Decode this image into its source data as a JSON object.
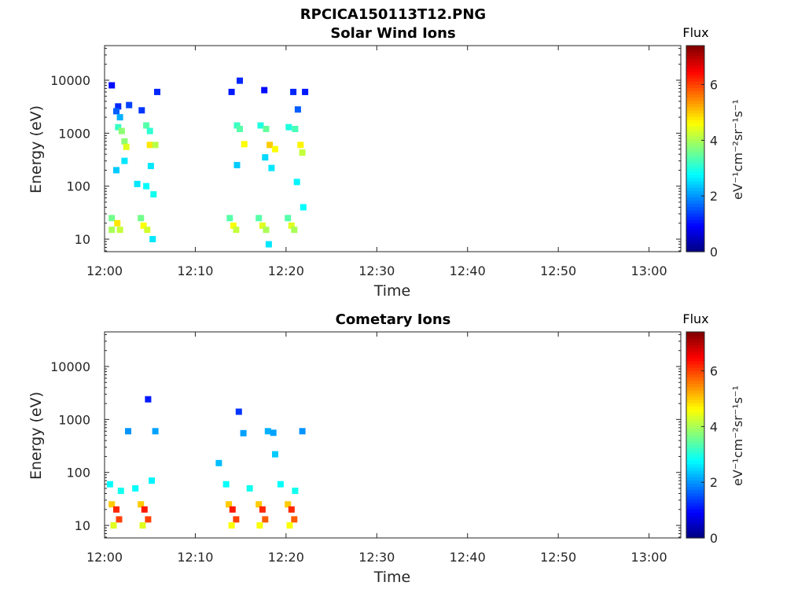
{
  "figure_title": "RPCICA150113T12.PNG",
  "chart_data": [
    {
      "type": "heatmap",
      "title": "Solar Wind Ions",
      "xlabel": "Time",
      "ylabel": "Energy (eV)",
      "x_ticks": [
        "12:00",
        "12:10",
        "12:20",
        "12:30",
        "12:40",
        "12:50",
        "13:00"
      ],
      "x_range_minutes": [
        0,
        63.5
      ],
      "y_scale": "log",
      "y_range": [
        5.8,
        45000
      ],
      "y_ticks": [
        10,
        100,
        1000,
        10000
      ],
      "y_tick_labels": [
        "10",
        "100",
        "1000",
        "10000"
      ],
      "colorbar": {
        "title": "Flux",
        "unit_label": "eV⁻¹cm⁻²sr⁻¹s⁻¹",
        "range": [
          0,
          7.4
        ],
        "ticks": [
          0,
          2,
          4,
          6
        ],
        "colormap": "jet"
      },
      "cells": [
        {
          "t": 0.8,
          "e": 8000,
          "v": 1.0
        },
        {
          "t": 1.5,
          "e": 3200,
          "v": 1.2
        },
        {
          "t": 1.3,
          "e": 2600,
          "v": 1.6
        },
        {
          "t": 1.7,
          "e": 2000,
          "v": 2.2
        },
        {
          "t": 1.5,
          "e": 1300,
          "v": 3.2
        },
        {
          "t": 1.9,
          "e": 1100,
          "v": 3.8
        },
        {
          "t": 2.2,
          "e": 700,
          "v": 3.8
        },
        {
          "t": 2.4,
          "e": 550,
          "v": 4.4
        },
        {
          "t": 2.2,
          "e": 300,
          "v": 2.6
        },
        {
          "t": 1.3,
          "e": 200,
          "v": 2.4
        },
        {
          "t": 2.7,
          "e": 3400,
          "v": 1.4
        },
        {
          "t": 4.1,
          "e": 2700,
          "v": 1.3
        },
        {
          "t": 4.6,
          "e": 1400,
          "v": 3.4
        },
        {
          "t": 5.0,
          "e": 1100,
          "v": 3.1
        },
        {
          "t": 5.0,
          "e": 600,
          "v": 4.8
        },
        {
          "t": 5.6,
          "e": 600,
          "v": 4.1
        },
        {
          "t": 5.8,
          "e": 6000,
          "v": 1.2
        },
        {
          "t": 5.1,
          "e": 240,
          "v": 2.6
        },
        {
          "t": 3.6,
          "e": 110,
          "v": 2.6
        },
        {
          "t": 4.6,
          "e": 100,
          "v": 2.8
        },
        {
          "t": 5.4,
          "e": 70,
          "v": 2.9
        },
        {
          "t": 14.0,
          "e": 6000,
          "v": 1.1
        },
        {
          "t": 14.9,
          "e": 9800,
          "v": 1.2
        },
        {
          "t": 14.6,
          "e": 1400,
          "v": 3.2
        },
        {
          "t": 14.9,
          "e": 1200,
          "v": 3.4
        },
        {
          "t": 15.4,
          "e": 620,
          "v": 4.6
        },
        {
          "t": 14.6,
          "e": 250,
          "v": 2.4
        },
        {
          "t": 17.2,
          "e": 1400,
          "v": 3.0
        },
        {
          "t": 17.8,
          "e": 1200,
          "v": 3.5
        },
        {
          "t": 17.6,
          "e": 6500,
          "v": 1.0
        },
        {
          "t": 18.2,
          "e": 600,
          "v": 5.0
        },
        {
          "t": 18.8,
          "e": 500,
          "v": 4.6
        },
        {
          "t": 17.7,
          "e": 350,
          "v": 2.5
        },
        {
          "t": 18.4,
          "e": 220,
          "v": 2.6
        },
        {
          "t": 20.8,
          "e": 6000,
          "v": 1.2
        },
        {
          "t": 20.3,
          "e": 1300,
          "v": 3.0
        },
        {
          "t": 21.0,
          "e": 1200,
          "v": 3.3
        },
        {
          "t": 21.6,
          "e": 600,
          "v": 4.7
        },
        {
          "t": 21.8,
          "e": 430,
          "v": 4.2
        },
        {
          "t": 21.3,
          "e": 2800,
          "v": 1.6
        },
        {
          "t": 21.2,
          "e": 120,
          "v": 2.7
        },
        {
          "t": 22.1,
          "e": 6000,
          "v": 1.1
        },
        {
          "t": 0.8,
          "e": 25,
          "v": 3.6
        },
        {
          "t": 0.8,
          "e": 15,
          "v": 4.0
        },
        {
          "t": 1.4,
          "e": 20,
          "v": 4.8
        },
        {
          "t": 1.7,
          "e": 15,
          "v": 4.2
        },
        {
          "t": 4.0,
          "e": 25,
          "v": 3.6
        },
        {
          "t": 4.3,
          "e": 18,
          "v": 4.6
        },
        {
          "t": 4.7,
          "e": 15,
          "v": 4.3
        },
        {
          "t": 5.3,
          "e": 10,
          "v": 2.6
        },
        {
          "t": 13.8,
          "e": 25,
          "v": 3.4
        },
        {
          "t": 14.2,
          "e": 18,
          "v": 4.6
        },
        {
          "t": 14.5,
          "e": 15,
          "v": 4.2
        },
        {
          "t": 17.0,
          "e": 25,
          "v": 3.4
        },
        {
          "t": 17.4,
          "e": 18,
          "v": 4.4
        },
        {
          "t": 17.8,
          "e": 15,
          "v": 4.0
        },
        {
          "t": 18.1,
          "e": 8,
          "v": 2.6
        },
        {
          "t": 20.2,
          "e": 25,
          "v": 3.4
        },
        {
          "t": 20.6,
          "e": 18,
          "v": 4.4
        },
        {
          "t": 20.9,
          "e": 15,
          "v": 4.0
        },
        {
          "t": 21.9,
          "e": 40,
          "v": 2.8
        }
      ]
    },
    {
      "type": "heatmap",
      "title": "Cometary Ions",
      "xlabel": "Time",
      "ylabel": "Energy (eV)",
      "x_ticks": [
        "12:00",
        "12:10",
        "12:20",
        "12:30",
        "12:40",
        "12:50",
        "13:00"
      ],
      "x_range_minutes": [
        0,
        63.5
      ],
      "y_scale": "log",
      "y_range": [
        5.8,
        45000
      ],
      "y_ticks": [
        10,
        100,
        1000,
        10000
      ],
      "y_tick_labels": [
        "10",
        "100",
        "1000",
        "10000"
      ],
      "colorbar": {
        "title": "Flux",
        "unit_label": "eV⁻¹cm⁻²sr⁻¹s⁻¹",
        "range": [
          0,
          7.4
        ],
        "ticks": [
          0,
          2,
          4,
          6
        ],
        "colormap": "jet"
      },
      "cells": [
        {
          "t": 4.8,
          "e": 2400,
          "v": 1.1
        },
        {
          "t": 2.6,
          "e": 600,
          "v": 2.0
        },
        {
          "t": 5.6,
          "e": 600,
          "v": 2.1
        },
        {
          "t": 14.8,
          "e": 1400,
          "v": 1.3
        },
        {
          "t": 15.3,
          "e": 550,
          "v": 2.1
        },
        {
          "t": 18.0,
          "e": 600,
          "v": 2.2
        },
        {
          "t": 18.6,
          "e": 560,
          "v": 2.1
        },
        {
          "t": 21.8,
          "e": 600,
          "v": 2.0
        },
        {
          "t": 18.8,
          "e": 220,
          "v": 2.4
        },
        {
          "t": 12.6,
          "e": 150,
          "v": 2.3
        },
        {
          "t": 0.6,
          "e": 60,
          "v": 2.8
        },
        {
          "t": 1.8,
          "e": 45,
          "v": 2.9
        },
        {
          "t": 3.4,
          "e": 50,
          "v": 2.8
        },
        {
          "t": 5.2,
          "e": 70,
          "v": 2.7
        },
        {
          "t": 13.4,
          "e": 60,
          "v": 2.8
        },
        {
          "t": 16.0,
          "e": 50,
          "v": 2.9
        },
        {
          "t": 19.4,
          "e": 60,
          "v": 2.8
        },
        {
          "t": 21.0,
          "e": 45,
          "v": 2.9
        },
        {
          "t": 0.8,
          "e": 25,
          "v": 5.0
        },
        {
          "t": 1.3,
          "e": 20,
          "v": 6.2
        },
        {
          "t": 1.6,
          "e": 13,
          "v": 6.0
        },
        {
          "t": 1.0,
          "e": 10,
          "v": 4.4
        },
        {
          "t": 4.0,
          "e": 25,
          "v": 5.0
        },
        {
          "t": 4.4,
          "e": 20,
          "v": 6.3
        },
        {
          "t": 4.8,
          "e": 13,
          "v": 6.0
        },
        {
          "t": 4.2,
          "e": 10,
          "v": 4.4
        },
        {
          "t": 13.7,
          "e": 25,
          "v": 5.0
        },
        {
          "t": 14.1,
          "e": 20,
          "v": 6.3
        },
        {
          "t": 14.5,
          "e": 13,
          "v": 6.0
        },
        {
          "t": 14.0,
          "e": 10,
          "v": 4.6
        },
        {
          "t": 17.0,
          "e": 25,
          "v": 5.0
        },
        {
          "t": 17.4,
          "e": 20,
          "v": 6.2
        },
        {
          "t": 17.7,
          "e": 13,
          "v": 5.8
        },
        {
          "t": 17.1,
          "e": 10,
          "v": 4.6
        },
        {
          "t": 20.2,
          "e": 25,
          "v": 5.0
        },
        {
          "t": 20.6,
          "e": 20,
          "v": 6.2
        },
        {
          "t": 20.9,
          "e": 13,
          "v": 5.8
        },
        {
          "t": 20.4,
          "e": 10,
          "v": 4.6
        }
      ]
    }
  ]
}
